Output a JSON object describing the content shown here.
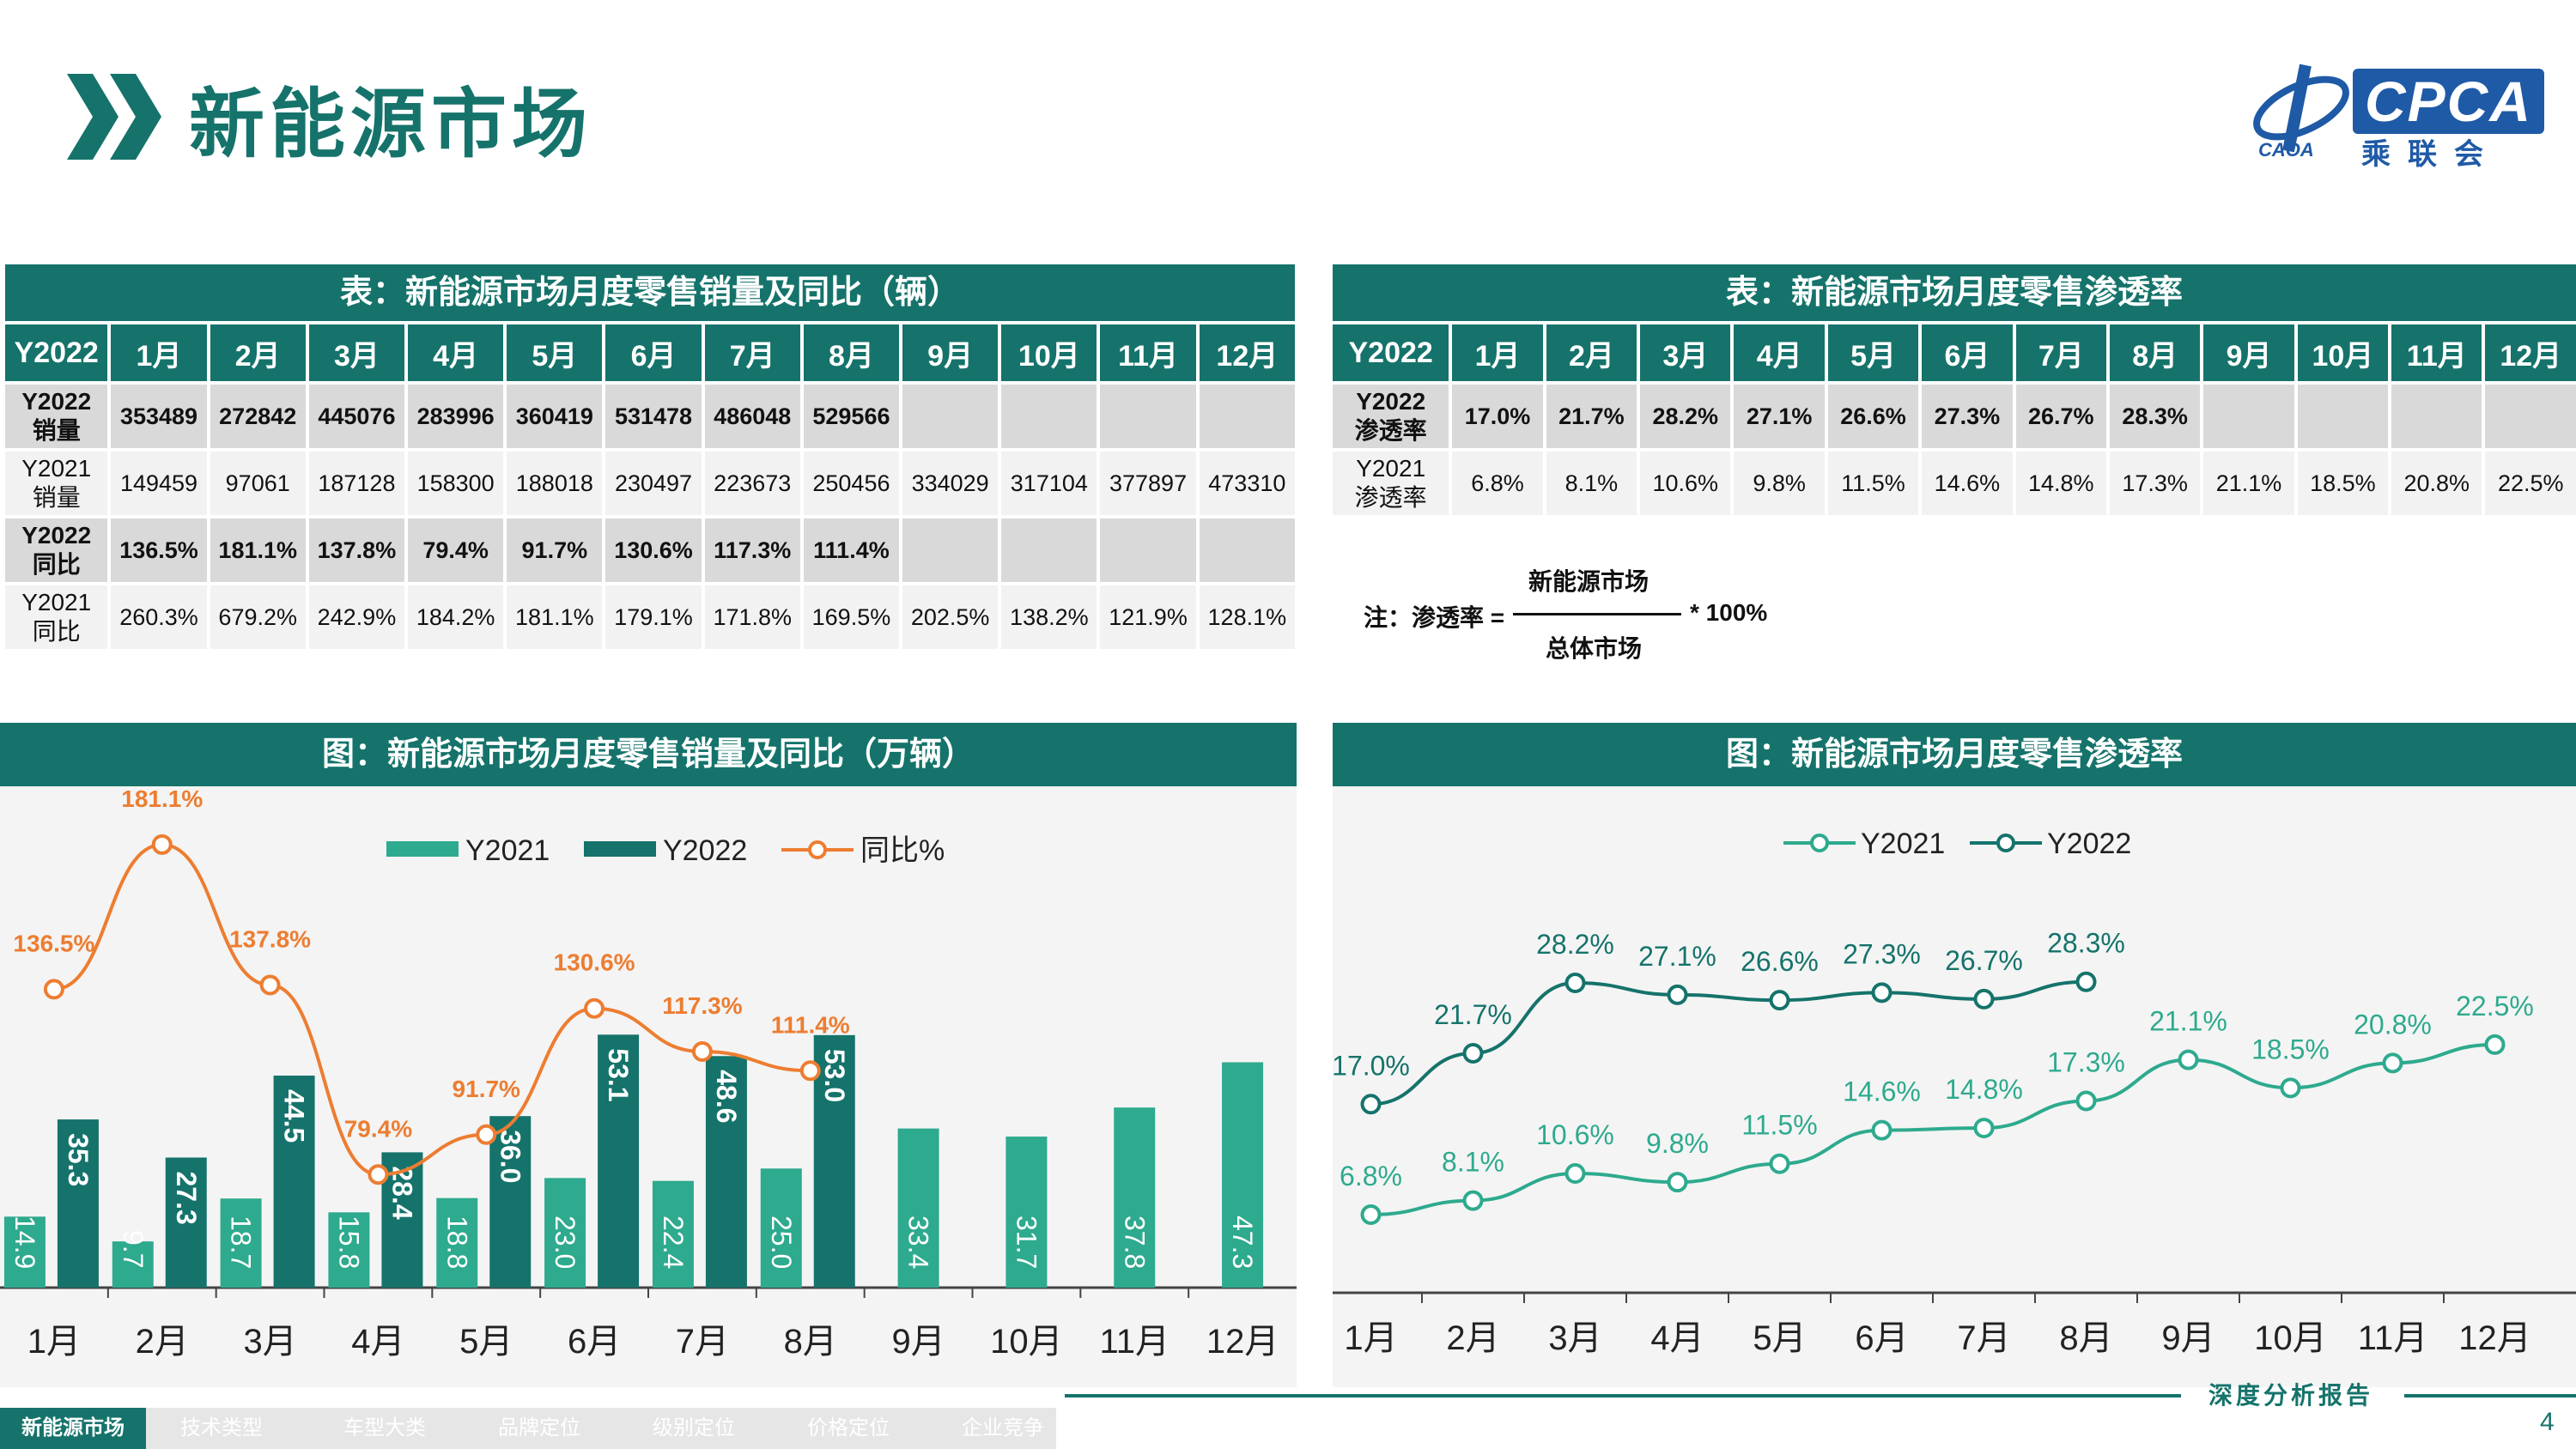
{
  "header": {
    "title": "新能源市场",
    "logo_text": "CPCA",
    "logo_sub": "乘联会",
    "logo_caoa": "CAOA"
  },
  "table1": {
    "title": "表：新能源市场月度零售销量及同比（辆）",
    "columns": [
      "Y2022",
      "1月",
      "2月",
      "3月",
      "4月",
      "5月",
      "6月",
      "7月",
      "8月",
      "9月",
      "10月",
      "11月",
      "12月"
    ],
    "rows": [
      {
        "label": "Y2022\n销量",
        "values": [
          "353489",
          "272842",
          "445076",
          "283996",
          "360419",
          "531478",
          "486048",
          "529566",
          "",
          "",
          "",
          ""
        ]
      },
      {
        "label": "Y2021\n销量",
        "values": [
          "149459",
          "97061",
          "187128",
          "158300",
          "188018",
          "230497",
          "223673",
          "250456",
          "334029",
          "317104",
          "377897",
          "473310"
        ]
      },
      {
        "label": "Y2022\n同比",
        "values": [
          "136.5%",
          "181.1%",
          "137.8%",
          "79.4%",
          "91.7%",
          "130.6%",
          "117.3%",
          "111.4%",
          "",
          "",
          "",
          ""
        ]
      },
      {
        "label": "Y2021\n同比",
        "values": [
          "260.3%",
          "679.2%",
          "242.9%",
          "184.2%",
          "181.1%",
          "179.1%",
          "171.8%",
          "169.5%",
          "202.5%",
          "138.2%",
          "121.9%",
          "128.1%"
        ]
      }
    ]
  },
  "table2": {
    "title": "表：新能源市场月度零售渗透率",
    "columns": [
      "Y2022",
      "1月",
      "2月",
      "3月",
      "4月",
      "5月",
      "6月",
      "7月",
      "8月",
      "9月",
      "10月",
      "11月",
      "12月"
    ],
    "rows": [
      {
        "label": "Y2022\n渗透率",
        "values": [
          "17.0%",
          "21.7%",
          "28.2%",
          "27.1%",
          "26.6%",
          "27.3%",
          "26.7%",
          "28.3%",
          "",
          "",
          "",
          ""
        ]
      },
      {
        "label": "Y2021\n渗透率",
        "values": [
          "6.8%",
          "8.1%",
          "10.6%",
          "9.8%",
          "11.5%",
          "14.6%",
          "14.8%",
          "17.3%",
          "21.1%",
          "18.5%",
          "20.8%",
          "22.5%"
        ]
      }
    ]
  },
  "formula": {
    "note": "注：渗透率 =",
    "numerator": "新能源市场",
    "denominator": "总体市场",
    "tail": "* 100%"
  },
  "chart_data": [
    {
      "type": "bar",
      "title": "图：新能源市场月度零售销量及同比（万辆）",
      "categories": [
        "1月",
        "2月",
        "3月",
        "4月",
        "5月",
        "6月",
        "7月",
        "8月",
        "9月",
        "10月",
        "11月",
        "12月"
      ],
      "series": [
        {
          "name": "Y2021",
          "type": "bar",
          "color": "#2eaa8e",
          "values": [
            14.9,
            9.7,
            18.7,
            15.8,
            18.8,
            23.0,
            22.4,
            25.0,
            33.4,
            31.7,
            37.8,
            47.3
          ]
        },
        {
          "name": "Y2022",
          "type": "bar",
          "color": "#15736b",
          "values": [
            35.3,
            27.3,
            44.5,
            28.4,
            36.0,
            53.1,
            48.6,
            53.0,
            null,
            null,
            null,
            null
          ]
        },
        {
          "name": "同比%",
          "type": "line",
          "color": "#ed7d31",
          "values": [
            136.5,
            181.1,
            137.8,
            79.4,
            91.7,
            130.6,
            117.3,
            111.4,
            null,
            null,
            null,
            null
          ]
        }
      ],
      "legend": "top-center"
    },
    {
      "type": "line",
      "title": "图：新能源市场月度零售渗透率",
      "categories": [
        "1月",
        "2月",
        "3月",
        "4月",
        "5月",
        "6月",
        "7月",
        "8月",
        "9月",
        "10月",
        "11月",
        "12月"
      ],
      "series": [
        {
          "name": "Y2021",
          "color": "#2eaa8e",
          "values": [
            6.8,
            8.1,
            10.6,
            9.8,
            11.5,
            14.6,
            14.8,
            17.3,
            21.1,
            18.5,
            20.8,
            22.5
          ]
        },
        {
          "name": "Y2022",
          "color": "#15736b",
          "values": [
            17.0,
            21.7,
            28.2,
            27.1,
            26.6,
            27.3,
            26.7,
            28.3,
            null,
            null,
            null,
            null
          ]
        }
      ],
      "legend": "top-center"
    }
  ],
  "nav": [
    "新能源市场",
    "技术类型",
    "车型大类",
    "品牌定位",
    "级别定位",
    "价格定位",
    "企业竞争"
  ],
  "footer": {
    "report": "深度分析报告",
    "page": "4"
  }
}
